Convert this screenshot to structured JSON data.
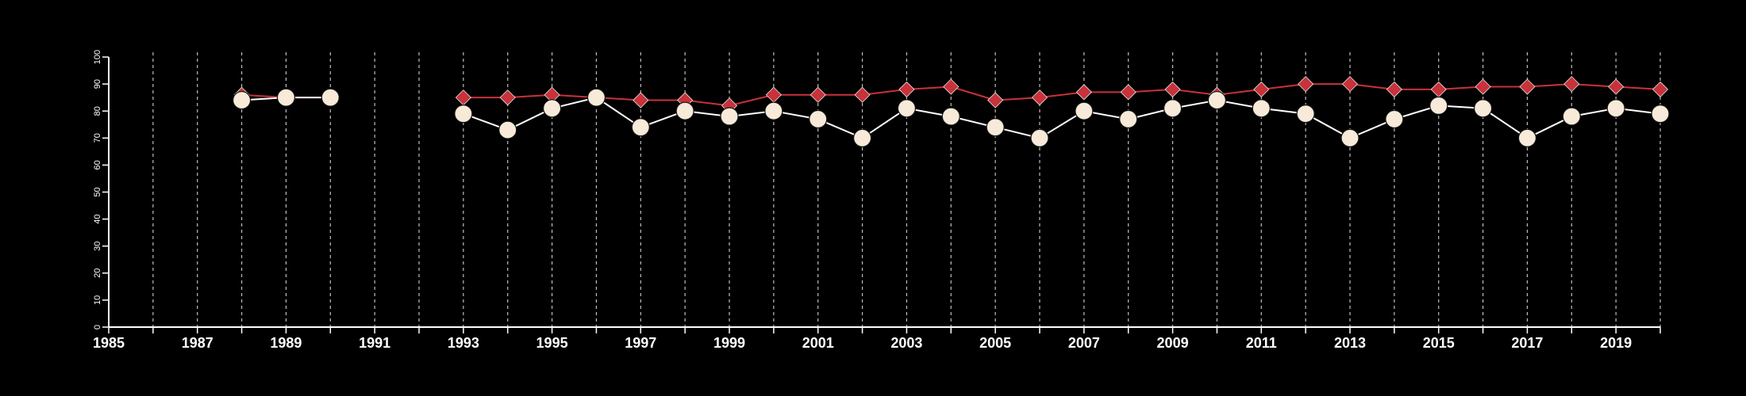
{
  "chart_data": {
    "type": "line",
    "title": "",
    "xlabel": "",
    "ylabel": "",
    "xlim": [
      1985,
      2020
    ],
    "ylim": [
      0,
      100
    ],
    "x_ticks": [
      1985,
      1986,
      1987,
      1988,
      1989,
      1990,
      1991,
      1992,
      1993,
      1994,
      1995,
      1996,
      1997,
      1998,
      1999,
      2000,
      2001,
      2002,
      2003,
      2004,
      2005,
      2006,
      2007,
      2008,
      2009,
      2010,
      2011,
      2012,
      2013,
      2014,
      2015,
      2016,
      2017,
      2018,
      2019,
      2020
    ],
    "x_tick_labels": [
      "1985",
      "1987",
      "1989",
      "1991",
      "1993",
      "1995",
      "1997",
      "1999",
      "2001",
      "2003",
      "2005",
      "2007",
      "2009",
      "2011",
      "2013",
      "2015",
      "2017",
      "2019"
    ],
    "y_ticks": [
      0,
      10,
      20,
      30,
      40,
      50,
      60,
      70,
      80,
      90,
      100
    ],
    "grid": "vertical dashed lines at each year",
    "legend": "none",
    "background_color": "#000000",
    "series": [
      {
        "marker": "diamond",
        "color": "#c8323a",
        "segments": [
          [
            [
              1988,
              86
            ],
            [
              1989,
              85
            ],
            [
              1990,
              85
            ]
          ],
          [
            [
              1993,
              85
            ],
            [
              1994,
              85
            ],
            [
              1995,
              86
            ],
            [
              1996,
              85
            ],
            [
              1997,
              84
            ],
            [
              1998,
              84
            ],
            [
              1999,
              82
            ],
            [
              2000,
              86
            ],
            [
              2001,
              86
            ],
            [
              2002,
              86
            ],
            [
              2003,
              88
            ],
            [
              2004,
              89
            ],
            [
              2005,
              84
            ],
            [
              2006,
              85
            ],
            [
              2007,
              87
            ],
            [
              2008,
              87
            ],
            [
              2009,
              88
            ],
            [
              2010,
              86
            ],
            [
              2011,
              88
            ],
            [
              2012,
              90
            ],
            [
              2013,
              90
            ],
            [
              2014,
              88
            ],
            [
              2015,
              88
            ],
            [
              2016,
              89
            ],
            [
              2017,
              89
            ],
            [
              2018,
              90
            ],
            [
              2019,
              89
            ],
            [
              2020,
              88
            ]
          ]
        ]
      },
      {
        "marker": "circle",
        "color": "#f7ead8",
        "segments": [
          [
            [
              1988,
              84
            ],
            [
              1989,
              85
            ],
            [
              1990,
              85
            ]
          ],
          [
            [
              1993,
              79
            ],
            [
              1994,
              73
            ],
            [
              1995,
              81
            ],
            [
              1996,
              85
            ],
            [
              1997,
              74
            ],
            [
              1998,
              80
            ],
            [
              1999,
              78
            ],
            [
              2000,
              80
            ],
            [
              2001,
              77
            ],
            [
              2002,
              70
            ],
            [
              2003,
              81
            ],
            [
              2004,
              78
            ],
            [
              2005,
              74
            ],
            [
              2006,
              70
            ],
            [
              2007,
              80
            ],
            [
              2008,
              77
            ],
            [
              2009,
              81
            ],
            [
              2010,
              84
            ],
            [
              2011,
              81
            ],
            [
              2012,
              79
            ],
            [
              2013,
              70
            ],
            [
              2014,
              77
            ],
            [
              2015,
              82
            ],
            [
              2016,
              81
            ],
            [
              2017,
              70
            ],
            [
              2018,
              78
            ],
            [
              2019,
              81
            ],
            [
              2020,
              79
            ]
          ]
        ]
      }
    ]
  }
}
